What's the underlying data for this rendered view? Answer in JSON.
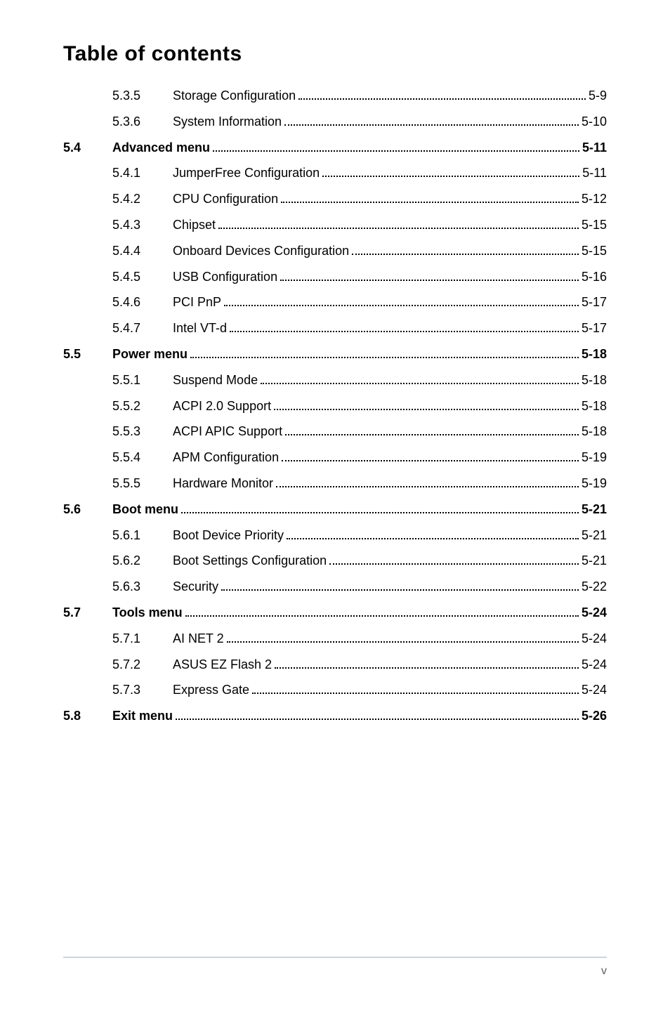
{
  "title": "Table of contents",
  "page_number": "v",
  "entries": [
    {
      "section": "",
      "sub": "5.3.5",
      "label": "Storage Configuration",
      "page": "5-9",
      "bold": false
    },
    {
      "section": "",
      "sub": "5.3.6",
      "label": "System Information",
      "page": "5-10",
      "bold": false
    },
    {
      "section": "5.4",
      "sub": "",
      "label": "Advanced menu",
      "page": "5-11",
      "bold": true
    },
    {
      "section": "",
      "sub": "5.4.1",
      "label": "JumperFree Configuration",
      "page": "5-11",
      "bold": false
    },
    {
      "section": "",
      "sub": "5.4.2",
      "label": "CPU Configuration",
      "page": "5-12",
      "bold": false
    },
    {
      "section": "",
      "sub": "5.4.3",
      "label": "Chipset",
      "page": "5-15",
      "bold": false
    },
    {
      "section": "",
      "sub": "5.4.4",
      "label": "Onboard Devices Configuration",
      "page": "5-15",
      "bold": false
    },
    {
      "section": "",
      "sub": "5.4.5",
      "label": "USB Configuration",
      "page": "5-16",
      "bold": false
    },
    {
      "section": "",
      "sub": "5.4.6",
      "label": "PCI PnP",
      "page": "5-17",
      "bold": false
    },
    {
      "section": "",
      "sub": "5.4.7",
      "label": "Intel VT-d",
      "page": "5-17",
      "bold": false
    },
    {
      "section": "5.5",
      "sub": "",
      "label": "Power menu",
      "page": "5-18",
      "bold": true
    },
    {
      "section": "",
      "sub": "5.5.1",
      "label": "Suspend Mode",
      "page": "5-18",
      "bold": false
    },
    {
      "section": "",
      "sub": "5.5.2",
      "label": "ACPI 2.0 Support",
      "page": "5-18",
      "bold": false
    },
    {
      "section": "",
      "sub": "5.5.3",
      "label": "ACPI APIC Support",
      "page": "5-18",
      "bold": false
    },
    {
      "section": "",
      "sub": "5.5.4",
      "label": "APM Configuration",
      "page": "5-19",
      "bold": false
    },
    {
      "section": "",
      "sub": "5.5.5",
      "label": "Hardware Monitor",
      "page": "5-19",
      "bold": false
    },
    {
      "section": "5.6",
      "sub": "",
      "label": "Boot menu",
      "page": "5-21",
      "bold": true
    },
    {
      "section": "",
      "sub": "5.6.1",
      "label": "Boot Device Priority",
      "page": "5-21",
      "bold": false
    },
    {
      "section": "",
      "sub": "5.6.2",
      "label": "Boot Settings Configuration",
      "page": "5-21",
      "bold": false
    },
    {
      "section": "",
      "sub": "5.6.3",
      "label": "Security",
      "page": "5-22",
      "bold": false
    },
    {
      "section": "5.7",
      "sub": "",
      "label": "Tools menu",
      "page": "5-24",
      "bold": true
    },
    {
      "section": "",
      "sub": "5.7.1",
      "label": "AI NET 2",
      "page": "5-24",
      "bold": false
    },
    {
      "section": "",
      "sub": "5.7.2",
      "label": "ASUS EZ Flash 2",
      "page": "5-24",
      "bold": false
    },
    {
      "section": "",
      "sub": "5.7.3",
      "label": "Express Gate",
      "page": "5-24",
      "bold": false
    },
    {
      "section": "5.8",
      "sub": "",
      "label": "Exit menu",
      "page": "5-26",
      "bold": true
    }
  ]
}
